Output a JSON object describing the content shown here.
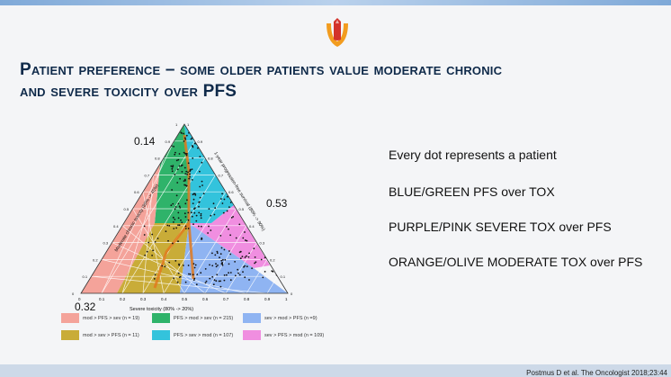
{
  "slide": {
    "title_line1": "Patient preference – some older patients value moderate chronic",
    "title_line2": "and severe toxicity over PFS",
    "bullets": [
      "Every dot represents a patient",
      "BLUE/GREEN PFS over TOX",
      "PURPLE/PINK SEVERE TOX over PFS",
      "ORANGE/OLIVE MODERATE TOX over PFS"
    ],
    "citation": "Postmus D et al. The Oncologist 2018;23:44"
  },
  "chart_data": {
    "type": "ternary-scatter",
    "axes": {
      "bottom": "Severe toxicity (80% -> 20%)",
      "left": "Moderate chronic toxicity (85% -> 45%)",
      "right": "1-year progression-free survival (80% -> 90%)"
    },
    "annotations": [
      "0.14",
      "0.53",
      "0.32"
    ],
    "ticks": [
      "0",
      "0.1",
      "0.2",
      "0.3",
      "0.4",
      "0.5",
      "0.6",
      "0.7",
      "0.8",
      "0.9",
      "1"
    ],
    "legend": [
      {
        "label": "mod > PFS > sev (n = 19)",
        "color": "#f4a39a"
      },
      {
        "label": "PFS > mod > sev (n = 215)",
        "color": "#2fb36a"
      },
      {
        "label": "sev > mod > PFS (n =9)",
        "color": "#8fb4f2"
      },
      {
        "label": "mod > sev > PFS (n = 11)",
        "color": "#c9ac38"
      },
      {
        "label": "PFS > sev > mod (n = 107)",
        "color": "#33c3dc"
      },
      {
        "label": "sev > PFS > mod (n = 109)",
        "color": "#f08ee0"
      }
    ]
  },
  "logo": {
    "colors": [
      "#f29c1f",
      "#d3322a"
    ]
  }
}
